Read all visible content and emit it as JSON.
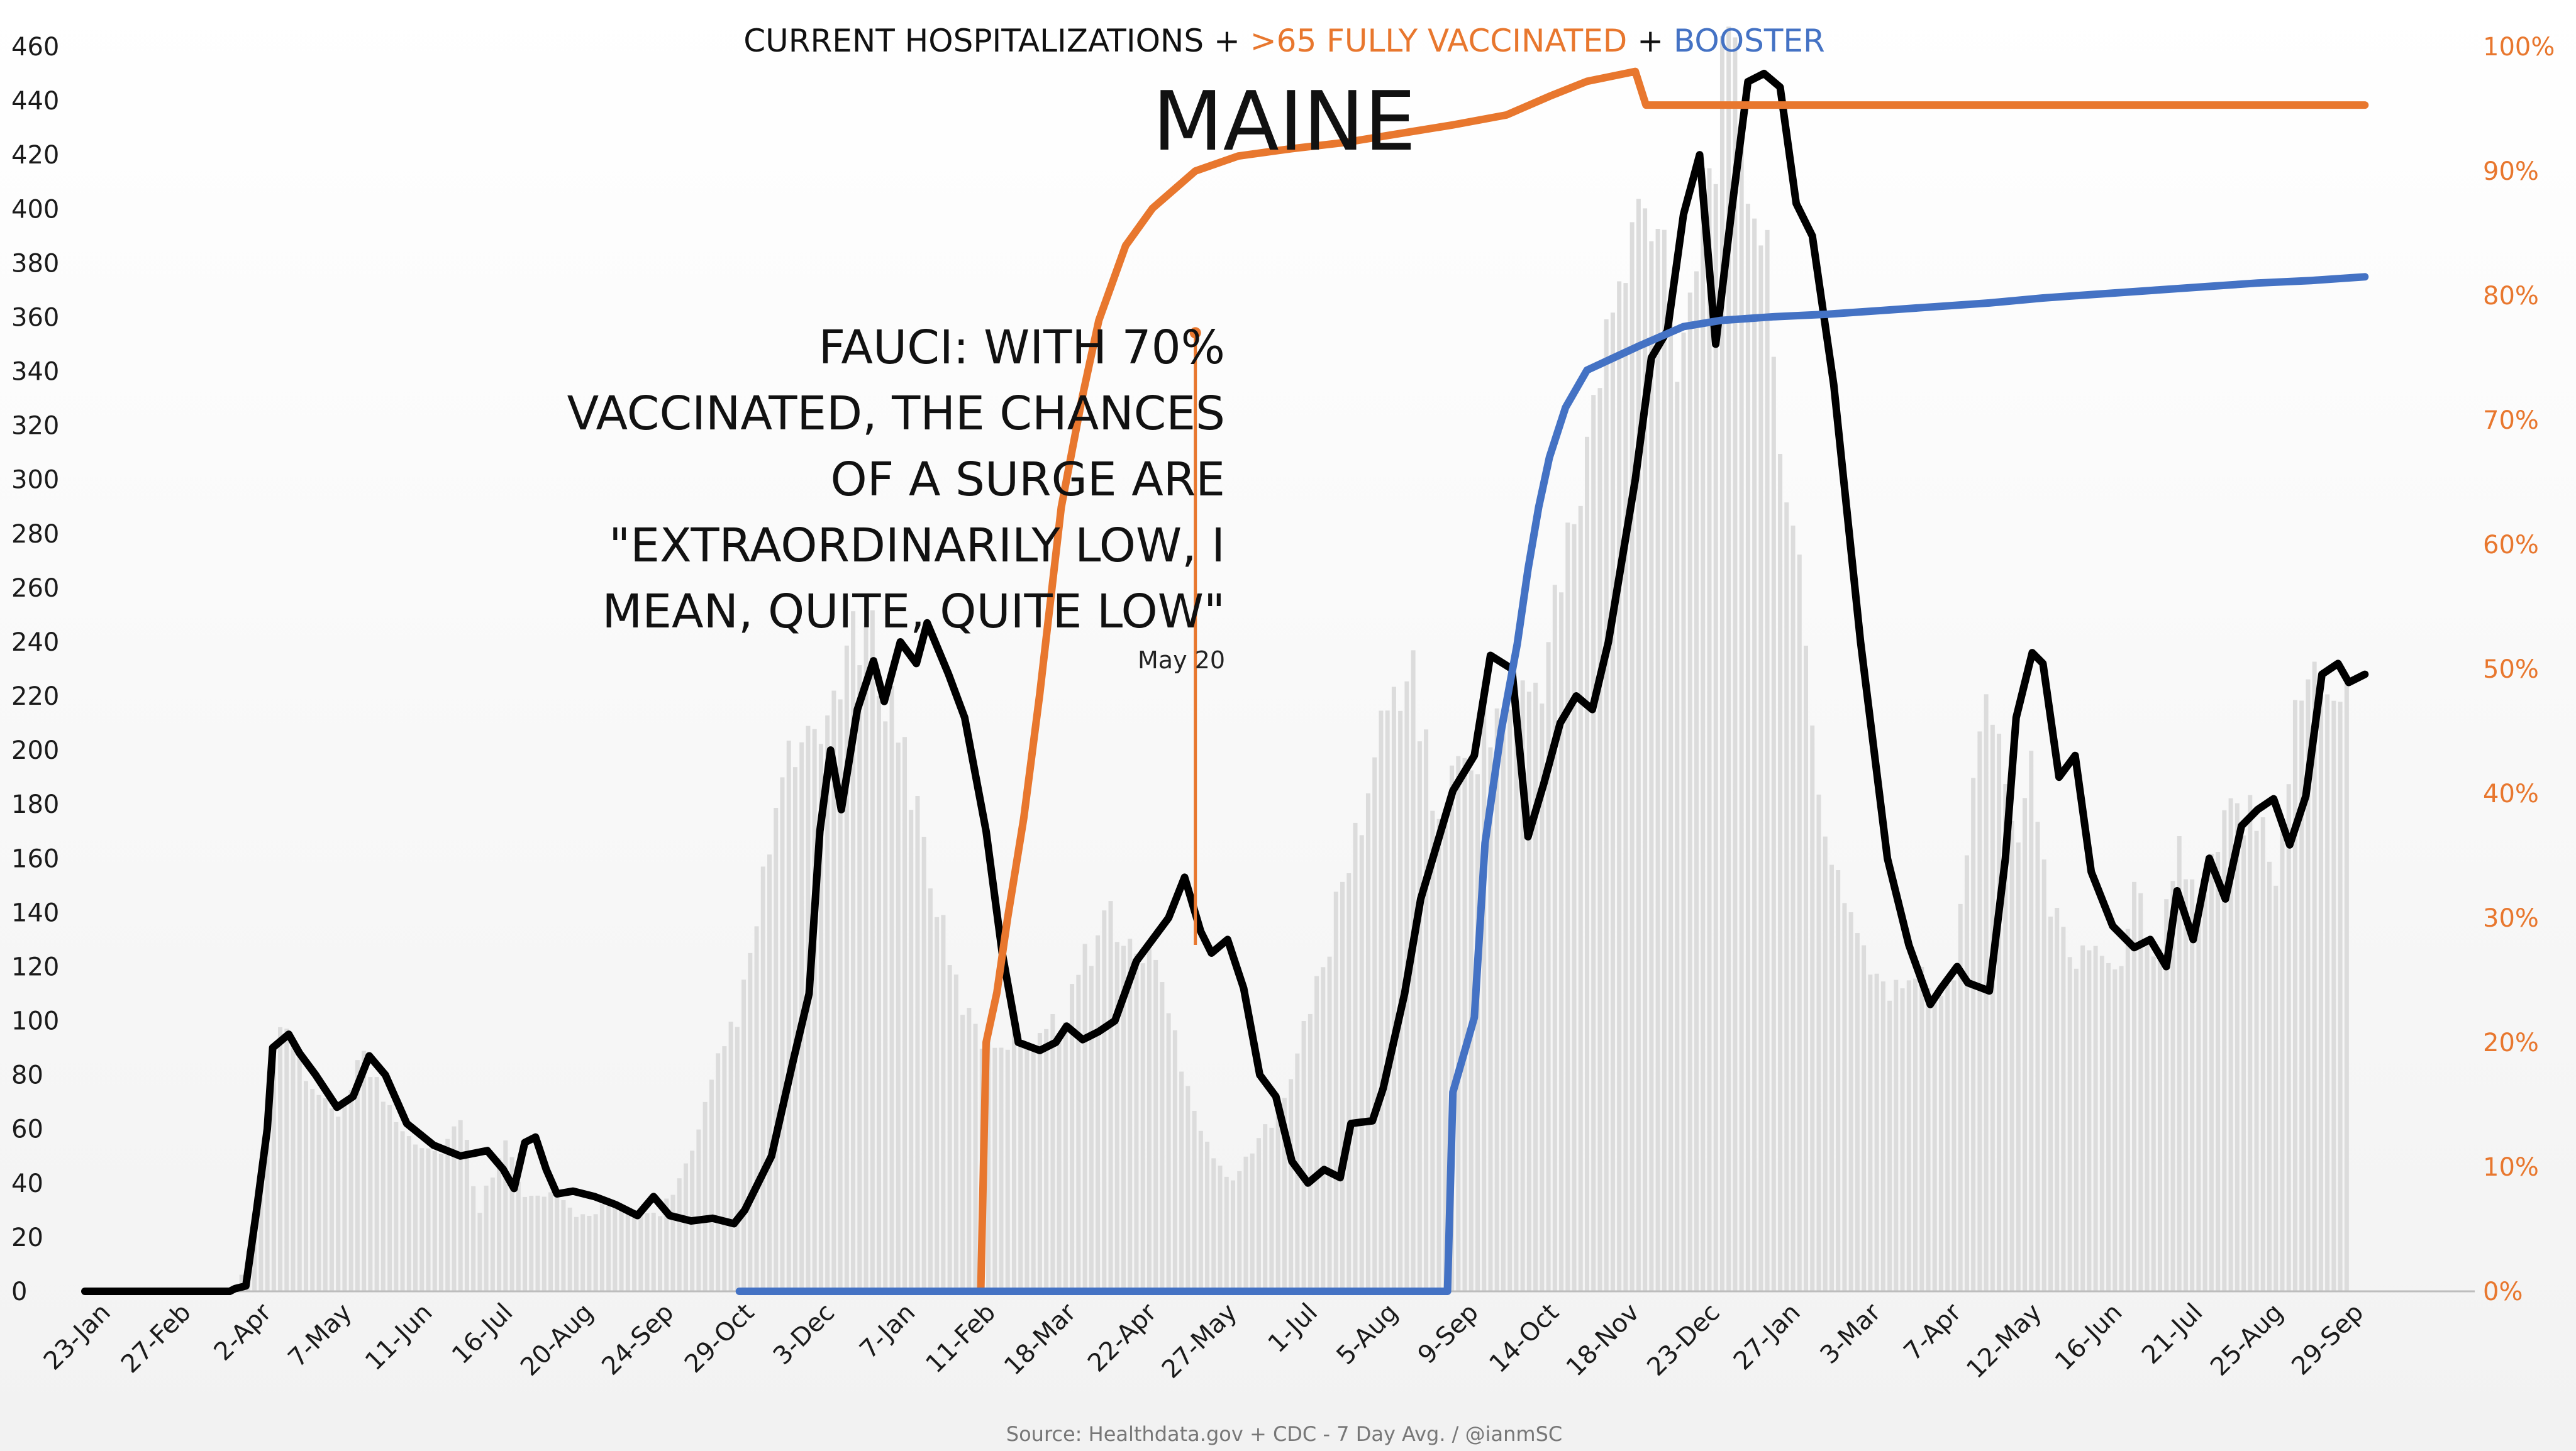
{
  "chart_data": {
    "type": "line",
    "title_parts": [
      {
        "text": "CURRENT HOSPITALIZATIONS + ",
        "color": "#111111"
      },
      {
        "text": ">65 FULLY VACCINATED",
        "color": "#e8772e"
      },
      {
        "text": " + ",
        "color": "#111111"
      },
      {
        "text": "BOOSTER",
        "color": "#4472c4"
      }
    ],
    "subtitle": "MAINE",
    "source": "Source: Healthdata.gov + CDC - 7 Day Avg. / @ianmSC",
    "x_tick_labels": [
      "23-Jan",
      "27-Feb",
      "2-Apr",
      "7-May",
      "11-Jun",
      "16-Jul",
      "20-Aug",
      "24-Sep",
      "29-Oct",
      "3-Dec",
      "7-Jan",
      "11-Feb",
      "18-Mar",
      "22-Apr",
      "27-May",
      "1-Jul",
      "5-Aug",
      "9-Sep",
      "14-Oct",
      "18-Nov",
      "23-Dec",
      "27-Jan",
      "3-Mar",
      "7-Apr",
      "12-May",
      "16-Jun",
      "21-Jul",
      "25-Aug",
      "29-Sep"
    ],
    "left_axis": {
      "ticks": [
        "0",
        "20",
        "40",
        "60",
        "80",
        "100",
        "120",
        "140",
        "160",
        "180",
        "200",
        "220",
        "240",
        "260",
        "280",
        "300",
        "320",
        "340",
        "360",
        "380",
        "400",
        "420",
        "440",
        "460"
      ],
      "ylim": [
        0,
        460
      ],
      "color": "#1a1a1a"
    },
    "right_axis": {
      "ticks": [
        "0%",
        "10%",
        "20%",
        "30%",
        "40%",
        "50%",
        "60%",
        "70%",
        "80%",
        "90%",
        "100%"
      ],
      "ylim": [
        0,
        100
      ],
      "color": "#e8772e"
    },
    "x_index_range": [
      0,
      29
    ],
    "series": [
      {
        "key": "daily",
        "style": "bars",
        "color": "#dcdcdc",
        "axis": "left",
        "points": [
          [
            0,
            0
          ],
          [
            1.3,
            0
          ],
          [
            2.0,
            0
          ],
          [
            2.8,
            0
          ],
          [
            3.2,
            30
          ],
          [
            3.5,
            92
          ],
          [
            3.8,
            98
          ],
          [
            4.3,
            70
          ],
          [
            4.7,
            68
          ],
          [
            5.1,
            90
          ],
          [
            5.5,
            74
          ],
          [
            6.0,
            60
          ],
          [
            6.5,
            52
          ],
          [
            7.0,
            64
          ],
          [
            7.3,
            30
          ],
          [
            7.8,
            60
          ],
          [
            8.1,
            35
          ],
          [
            8.7,
            36
          ],
          [
            9.2,
            28
          ],
          [
            9.7,
            33
          ],
          [
            10.2,
            28
          ],
          [
            10.7,
            30
          ],
          [
            11.3,
            52
          ],
          [
            11.8,
            88
          ],
          [
            12.3,
            115
          ],
          [
            12.8,
            178
          ],
          [
            13.2,
            205
          ],
          [
            13.6,
            200
          ],
          [
            14.1,
            240
          ],
          [
            14.6,
            245
          ],
          [
            15.0,
            222
          ],
          [
            15.5,
            180
          ],
          [
            16.1,
            120
          ],
          [
            16.6,
            95
          ],
          [
            17.1,
            95
          ],
          [
            17.6,
            98
          ],
          [
            18.1,
            100
          ],
          [
            18.6,
            125
          ],
          [
            19.1,
            145
          ],
          [
            19.4,
            126
          ],
          [
            19.8,
            130
          ],
          [
            20.3,
            95
          ],
          [
            20.8,
            60
          ],
          [
            21.2,
            42
          ],
          [
            21.6,
            48
          ],
          [
            22.0,
            62
          ],
          [
            22.5,
            85
          ],
          [
            23.0,
            120
          ],
          [
            23.5,
            160
          ],
          [
            23.9,
            190
          ],
          [
            24.2,
            218
          ],
          [
            24.7,
            238
          ],
          [
            25.1,
            180
          ],
          [
            25.6,
            196
          ],
          [
            26.1,
            214
          ],
          [
            26.6,
            220
          ],
          [
            27.1,
            232
          ],
          [
            27.6,
            278
          ],
          [
            28.2,
            345
          ],
          [
            28.8,
            395
          ],
          [
            29.2,
            418
          ],
          [
            29.7,
            355
          ],
          [
            30.3,
            440
          ],
          [
            30.7,
            455
          ],
          [
            31.2,
            400
          ],
          [
            31.7,
            310
          ],
          [
            32.3,
            180
          ],
          [
            33.0,
            135
          ],
          [
            33.6,
            108
          ],
          [
            34.0,
            122
          ],
          [
            34.4,
            112
          ],
          [
            34.8,
            120
          ],
          [
            35.2,
            208
          ],
          [
            35.6,
            232
          ],
          [
            35.9,
            165
          ],
          [
            36.2,
            200
          ],
          [
            36.6,
            145
          ],
          [
            37.0,
            128
          ],
          [
            37.5,
            132
          ],
          [
            37.8,
            115
          ],
          [
            38.1,
            150
          ],
          [
            38.6,
            130
          ],
          [
            39.0,
            168
          ],
          [
            39.4,
            140
          ],
          [
            39.8,
            175
          ],
          [
            40.2,
            182
          ],
          [
            40.5,
            185
          ],
          [
            40.8,
            160
          ],
          [
            41.2,
            220
          ],
          [
            41.6,
            240
          ],
          [
            41.9,
            226
          ],
          [
            42.2,
            230
          ]
        ]
      },
      {
        "key": "hospitalizations",
        "style": "line",
        "color": "#000000",
        "axis": "left",
        "points": [
          [
            0,
            0
          ],
          [
            2.7,
            0
          ],
          [
            2.8,
            1
          ],
          [
            3.0,
            2
          ],
          [
            3.2,
            30
          ],
          [
            3.4,
            60
          ],
          [
            3.5,
            90
          ],
          [
            3.8,
            95
          ],
          [
            4.0,
            88
          ],
          [
            4.3,
            80
          ],
          [
            4.7,
            68
          ],
          [
            5.0,
            72
          ],
          [
            5.3,
            87
          ],
          [
            5.6,
            80
          ],
          [
            6.0,
            62
          ],
          [
            6.5,
            54
          ],
          [
            7.0,
            50
          ],
          [
            7.5,
            52
          ],
          [
            7.8,
            45
          ],
          [
            8.0,
            38
          ],
          [
            8.2,
            55
          ],
          [
            8.4,
            57
          ],
          [
            8.6,
            45
          ],
          [
            8.8,
            36
          ],
          [
            9.1,
            37
          ],
          [
            9.5,
            35
          ],
          [
            9.9,
            32
          ],
          [
            10.3,
            28
          ],
          [
            10.6,
            35
          ],
          [
            10.9,
            28
          ],
          [
            11.3,
            26
          ],
          [
            11.7,
            27
          ],
          [
            12.1,
            25
          ],
          [
            12.3,
            30
          ],
          [
            12.8,
            50
          ],
          [
            13.2,
            85
          ],
          [
            13.5,
            110
          ],
          [
            13.7,
            170
          ],
          [
            13.9,
            200
          ],
          [
            14.1,
            178
          ],
          [
            14.4,
            215
          ],
          [
            14.7,
            233
          ],
          [
            14.9,
            218
          ],
          [
            15.2,
            240
          ],
          [
            15.5,
            232
          ],
          [
            15.7,
            247
          ],
          [
            16.1,
            228
          ],
          [
            16.4,
            212
          ],
          [
            16.8,
            170
          ],
          [
            17.1,
            125
          ],
          [
            17.4,
            92
          ],
          [
            17.8,
            89
          ],
          [
            18.1,
            92
          ],
          [
            18.3,
            98
          ],
          [
            18.6,
            93
          ],
          [
            18.9,
            96
          ],
          [
            19.2,
            100
          ],
          [
            19.6,
            122
          ],
          [
            19.9,
            130
          ],
          [
            20.2,
            138
          ],
          [
            20.5,
            153
          ],
          [
            20.8,
            133
          ],
          [
            21.0,
            125
          ],
          [
            21.3,
            130
          ],
          [
            21.6,
            112
          ],
          [
            21.9,
            80
          ],
          [
            22.2,
            72
          ],
          [
            22.5,
            48
          ],
          [
            22.8,
            40
          ],
          [
            23.1,
            45
          ],
          [
            23.4,
            42
          ],
          [
            23.6,
            62
          ],
          [
            24.0,
            63
          ],
          [
            24.2,
            75
          ],
          [
            24.6,
            110
          ],
          [
            24.9,
            145
          ],
          [
            25.2,
            165
          ],
          [
            25.5,
            185
          ],
          [
            25.9,
            198
          ],
          [
            26.2,
            235
          ],
          [
            26.6,
            230
          ],
          [
            26.9,
            168
          ],
          [
            27.2,
            188
          ],
          [
            27.5,
            210
          ],
          [
            27.8,
            220
          ],
          [
            28.1,
            215
          ],
          [
            28.4,
            240
          ],
          [
            28.9,
            300
          ],
          [
            29.2,
            345
          ],
          [
            29.5,
            355
          ],
          [
            29.8,
            398
          ],
          [
            30.1,
            420
          ],
          [
            30.4,
            350
          ],
          [
            30.7,
            400
          ],
          [
            31.0,
            447
          ],
          [
            31.3,
            450
          ],
          [
            31.6,
            445
          ],
          [
            31.9,
            402
          ],
          [
            32.2,
            390
          ],
          [
            32.6,
            335
          ],
          [
            33.1,
            240
          ],
          [
            33.6,
            160
          ],
          [
            34.0,
            128
          ],
          [
            34.4,
            106
          ],
          [
            34.6,
            112
          ],
          [
            34.9,
            120
          ],
          [
            35.1,
            114
          ],
          [
            35.5,
            111
          ],
          [
            35.8,
            160
          ],
          [
            36.0,
            212
          ],
          [
            36.3,
            236
          ],
          [
            36.5,
            232
          ],
          [
            36.8,
            190
          ],
          [
            37.1,
            198
          ],
          [
            37.4,
            155
          ],
          [
            37.8,
            135
          ],
          [
            38.2,
            127
          ],
          [
            38.5,
            130
          ],
          [
            38.8,
            120
          ],
          [
            39.0,
            148
          ],
          [
            39.3,
            130
          ],
          [
            39.6,
            160
          ],
          [
            39.9,
            145
          ],
          [
            40.2,
            172
          ],
          [
            40.5,
            178
          ],
          [
            40.8,
            182
          ],
          [
            41.1,
            165
          ],
          [
            41.4,
            183
          ],
          [
            41.7,
            228
          ],
          [
            42.0,
            232
          ],
          [
            42.2,
            225
          ],
          [
            42.5,
            228
          ]
        ]
      },
      {
        "key": "fully_vaccinated_65",
        "style": "line",
        "color": "#e8772e",
        "axis": "right",
        "points": [
          [
            16.7,
            0
          ],
          [
            16.8,
            20
          ],
          [
            17.0,
            24
          ],
          [
            17.2,
            30
          ],
          [
            17.5,
            38
          ],
          [
            17.8,
            48
          ],
          [
            18.2,
            63
          ],
          [
            18.6,
            72
          ],
          [
            18.9,
            78
          ],
          [
            19.4,
            84
          ],
          [
            19.9,
            87
          ],
          [
            20.3,
            88.5
          ],
          [
            20.7,
            90
          ],
          [
            21.5,
            91.2
          ],
          [
            22.5,
            91.8
          ],
          [
            23.5,
            92.3
          ],
          [
            24.5,
            93
          ],
          [
            25.5,
            93.7
          ],
          [
            26.5,
            94.5
          ],
          [
            27.3,
            96
          ],
          [
            28.0,
            97.2
          ],
          [
            28.9,
            98
          ],
          [
            29.1,
            95.3
          ],
          [
            30.5,
            95.3
          ],
          [
            32.0,
            95.3
          ],
          [
            34.0,
            95.3
          ],
          [
            36.0,
            95.3
          ],
          [
            38.0,
            95.3
          ],
          [
            40.0,
            95.3
          ],
          [
            42.5,
            95.3
          ]
        ]
      },
      {
        "key": "booster",
        "style": "line",
        "color": "#4472c4",
        "axis": "right",
        "points": [
          [
            12.2,
            0
          ],
          [
            25.4,
            0
          ],
          [
            25.5,
            16
          ],
          [
            25.9,
            22
          ],
          [
            26.1,
            36
          ],
          [
            26.4,
            45
          ],
          [
            26.7,
            52
          ],
          [
            26.9,
            58
          ],
          [
            27.1,
            63
          ],
          [
            27.3,
            67
          ],
          [
            27.6,
            71
          ],
          [
            28.0,
            74
          ],
          [
            28.5,
            75
          ],
          [
            29.0,
            76
          ],
          [
            29.8,
            77.5
          ],
          [
            30.5,
            78
          ],
          [
            31.5,
            78.3
          ],
          [
            32.5,
            78.5
          ],
          [
            33.5,
            78.8
          ],
          [
            34.5,
            79.1
          ],
          [
            35.5,
            79.4
          ],
          [
            36.5,
            79.8
          ],
          [
            37.5,
            80.1
          ],
          [
            38.5,
            80.4
          ],
          [
            39.5,
            80.7
          ],
          [
            40.5,
            81
          ],
          [
            41.5,
            81.2
          ],
          [
            42.5,
            81.5
          ]
        ]
      }
    ],
    "annotation": {
      "lines": [
        "FAUCI: WITH 70%",
        "VACCINATED, THE CHANCES",
        "OF A SURGE ARE",
        "\"EXTRAORDINARILY LOW, I",
        "MEAN, QUITE, QUITE LOW\""
      ],
      "date": "May 20",
      "x_index": 20.7,
      "y_top_pct": 77,
      "y_bottom_value": 128,
      "color": "#e8772e"
    },
    "grid": false,
    "legend": "none"
  }
}
